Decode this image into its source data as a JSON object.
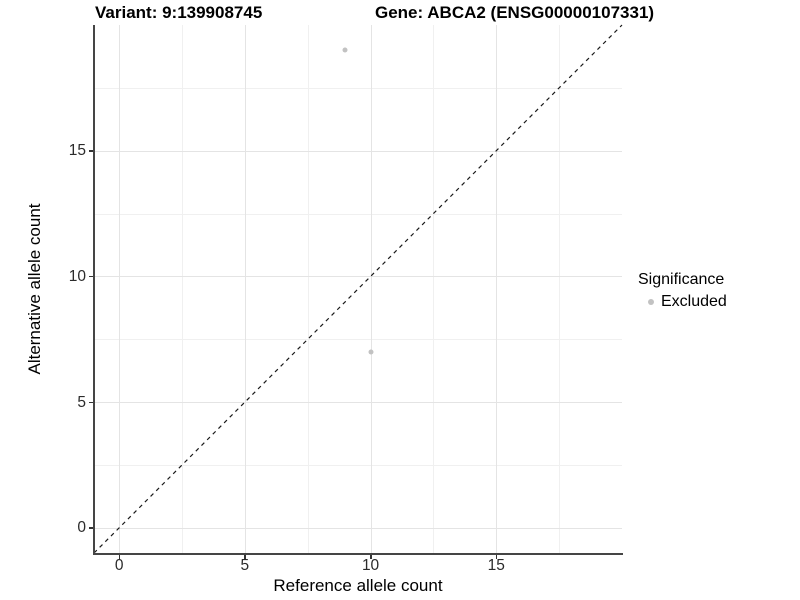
{
  "titles": {
    "left": "Variant: 9:139908745",
    "right": "Gene: ABCA2 (ENSG00000107331)"
  },
  "chart_data": {
    "type": "scatter",
    "title": "Variant: 9:139908745    Gene: ABCA2 (ENSG00000107331)",
    "xlabel": "Reference allele count",
    "ylabel": "Alternative allele count",
    "xlim": [
      -1,
      20
    ],
    "ylim": [
      -1,
      20
    ],
    "x_ticks": [
      0,
      5,
      10,
      15
    ],
    "y_ticks": [
      0,
      5,
      10,
      15
    ],
    "x_minor_ticks": [
      2.5,
      7.5,
      12.5,
      17.5
    ],
    "y_minor_ticks": [
      2.5,
      7.5,
      12.5,
      17.5
    ],
    "grid": "major and minor, light grey on white",
    "series": [
      {
        "name": "Excluded",
        "points": [
          {
            "x": 9,
            "y": 19
          },
          {
            "x": 10,
            "y": 7
          }
        ]
      }
    ],
    "reference_line": {
      "description": "identity line y = x, dashed",
      "from": {
        "x": -1,
        "y": -1
      },
      "to": {
        "x": 20,
        "y": 20
      }
    },
    "legend": {
      "title": "Significance",
      "position": "right",
      "entries": [
        {
          "label": "Excluded"
        }
      ]
    }
  },
  "colors": {
    "point": "#c2c2c2",
    "grid_major": "#e4e4e4",
    "grid_minor": "#f0f0f0",
    "axis_line": "#454545",
    "tick_text": "#2b2b2b",
    "reference_line": "#1a1a1a",
    "background": "#ffffff"
  }
}
